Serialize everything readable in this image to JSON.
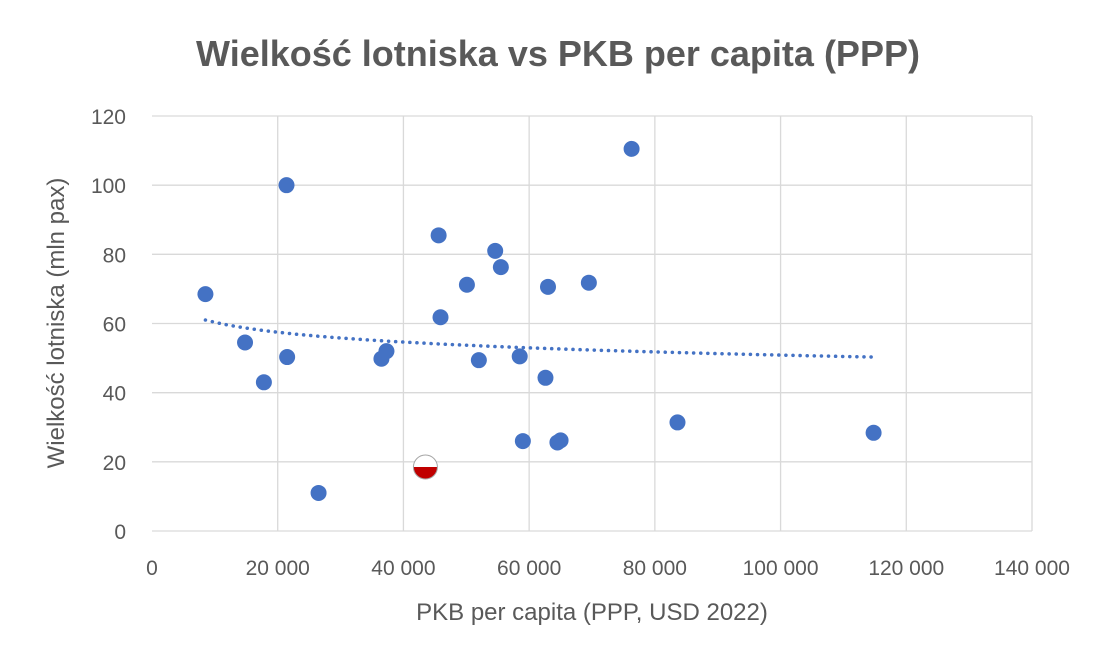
{
  "chart_data": {
    "type": "scatter",
    "title": "Wielkość lotniska vs PKB per capita (PPP)",
    "xlabel": "PKB per capita (PPP, USD 2022)",
    "ylabel": "Wielkość lotniska (mln pax)",
    "xlim": [
      0,
      140000
    ],
    "ylim": [
      0,
      120
    ],
    "x_ticks": [
      0,
      20000,
      40000,
      60000,
      80000,
      100000,
      120000,
      140000
    ],
    "x_tick_labels": [
      "0",
      "20 000",
      "40 000",
      "60 000",
      "80 000",
      "100 000",
      "120 000",
      "140 000"
    ],
    "y_ticks": [
      0,
      20,
      40,
      60,
      80,
      100,
      120
    ],
    "y_tick_labels": [
      "0",
      "20",
      "40",
      "60",
      "80",
      "100",
      "120"
    ],
    "grid": true,
    "legend": "none",
    "series": [
      {
        "color": "#4472c4",
        "points": [
          {
            "x": 8500,
            "y": 68.5
          },
          {
            "x": 14800,
            "y": 54.5
          },
          {
            "x": 17800,
            "y": 43.0
          },
          {
            "x": 21400,
            "y": 100.0
          },
          {
            "x": 21500,
            "y": 50.3
          },
          {
            "x": 26500,
            "y": 11.0
          },
          {
            "x": 36500,
            "y": 49.8
          },
          {
            "x": 37300,
            "y": 52.0
          },
          {
            "x": 45600,
            "y": 85.5
          },
          {
            "x": 45900,
            "y": 61.8
          },
          {
            "x": 50100,
            "y": 71.2
          },
          {
            "x": 52000,
            "y": 49.4
          },
          {
            "x": 54600,
            "y": 81.0
          },
          {
            "x": 55500,
            "y": 76.3
          },
          {
            "x": 58500,
            "y": 50.5
          },
          {
            "x": 59000,
            "y": 26.0
          },
          {
            "x": 62600,
            "y": 44.3
          },
          {
            "x": 63000,
            "y": 70.6
          },
          {
            "x": 64500,
            "y": 25.6
          },
          {
            "x": 65000,
            "y": 26.2
          },
          {
            "x": 69500,
            "y": 71.8
          },
          {
            "x": 76300,
            "y": 110.5
          },
          {
            "x": 83600,
            "y": 31.4
          },
          {
            "x": 114800,
            "y": 28.4
          }
        ]
      },
      {
        "color": "#c00000",
        "marker": "poland-flag-icon",
        "points": [
          {
            "x": 43500,
            "y": 18.5
          }
        ]
      }
    ],
    "trendline": {
      "type": "logarithmic",
      "style": "dotted",
      "color": "#4472c4",
      "x_range": [
        8500,
        114800
      ],
      "y_start": 61.0,
      "y_end": 50.3
    }
  }
}
